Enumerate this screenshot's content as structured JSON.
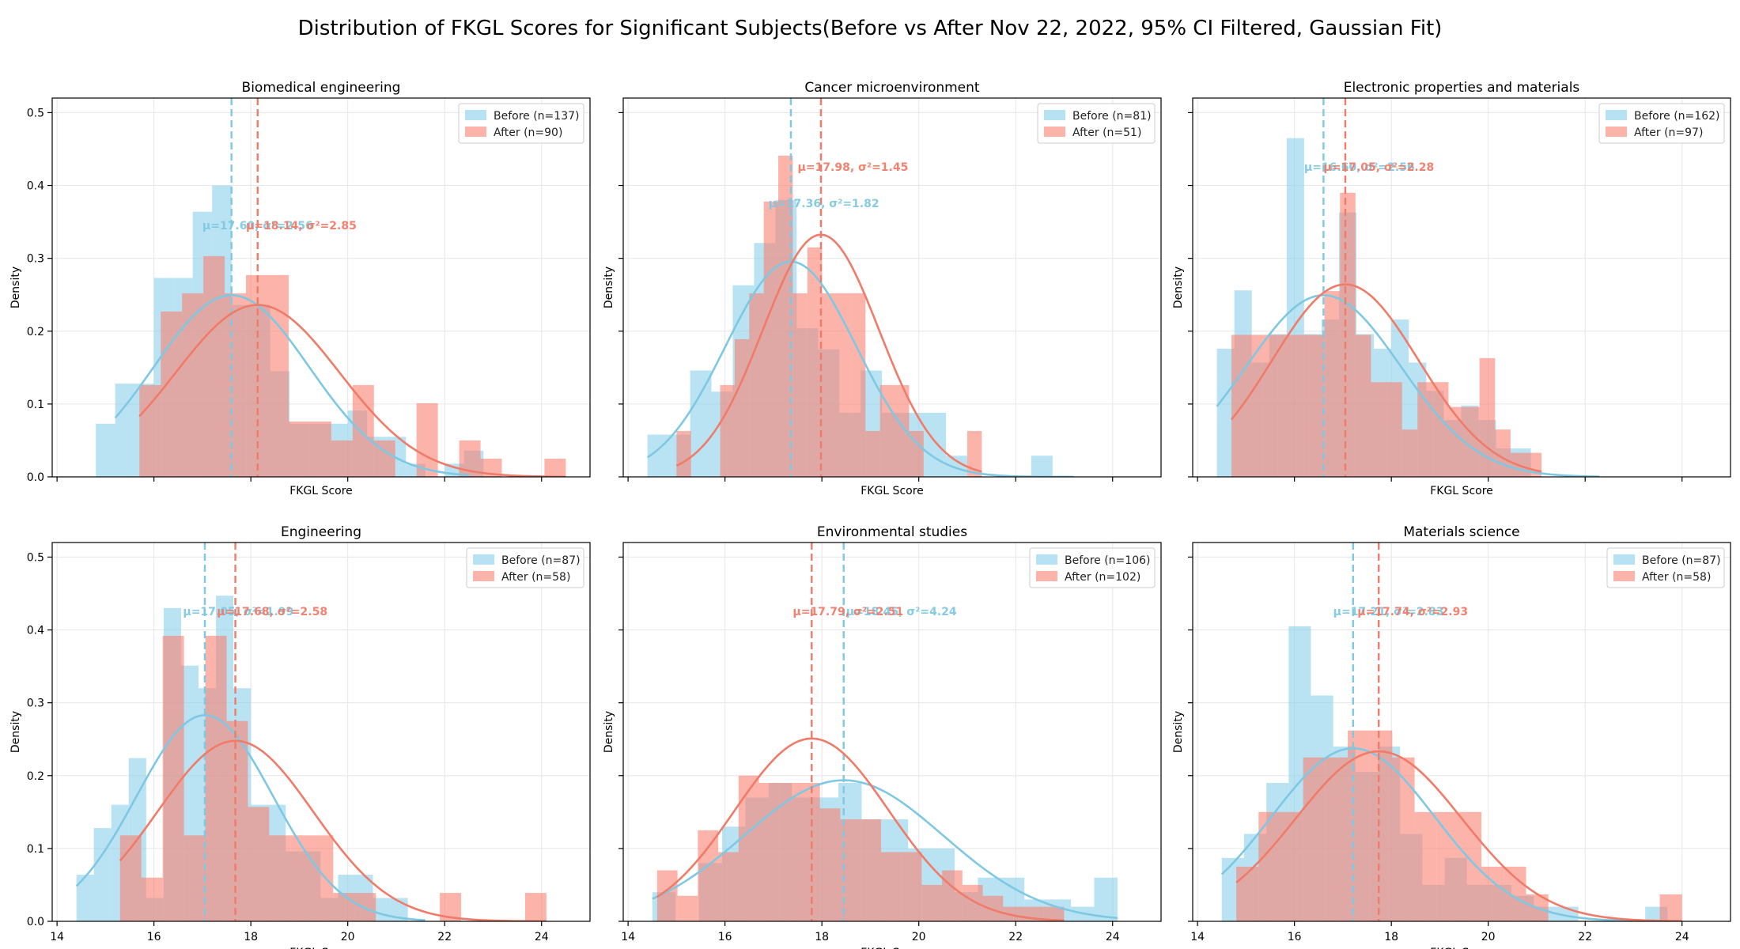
{
  "colors": {
    "before": "#87ceeb",
    "after": "#fa8072",
    "before_line": "#7ec8e3",
    "after_line": "#f07b68"
  },
  "figure": {
    "title": "Distribution of FKGL Scores for Significant Subjects(Before vs After Nov 22, 2022, 95% CI Filtered, Gaussian Fit)"
  },
  "chart_data": [
    {
      "type": "bar",
      "title": "Biomedical engineering",
      "xlabel": "FKGL Score",
      "ylabel": "Density",
      "xlim": [
        13.9,
        25.0
      ],
      "ylim": [
        0,
        0.52
      ],
      "xticks": [
        14,
        16,
        18,
        20,
        22,
        24
      ],
      "yticks": [
        0.0,
        0.1,
        0.2,
        0.3,
        0.4,
        0.5
      ],
      "show_xtick_labels": false,
      "show_ytick_labels": true,
      "grid": true,
      "legend_position": "top-right",
      "series": [
        {
          "name": "Before (n=137)",
          "key": "before",
          "bin_edges": [
            14.8,
            15.2,
            15.6,
            16.0,
            16.4,
            16.8,
            17.2,
            17.6,
            18.0,
            18.4,
            18.8,
            19.2,
            19.6,
            20.0,
            20.4,
            20.8,
            21.2,
            21.6,
            22.0,
            22.4,
            22.8
          ],
          "values": [
            0.073,
            0.128,
            0.128,
            0.273,
            0.273,
            0.364,
            0.4,
            0.236,
            0.236,
            0.145,
            0.073,
            0.073,
            0.073,
            0.091,
            0.055,
            0.055,
            0.018,
            0.0,
            0.018,
            0.036
          ],
          "fit": {
            "mu": 17.6,
            "sigma": 1.6,
            "x_range": [
              15.2,
              22.5
            ]
          },
          "mean_line": 17.6,
          "annotation": "μ=17.60, σ²=2.56",
          "annot_x": 17.0,
          "annot_y": 0.34
        },
        {
          "name": "After (n=90)",
          "key": "after",
          "bin_edges": [
            15.7,
            16.14,
            16.58,
            17.02,
            17.46,
            17.9,
            18.34,
            18.78,
            19.22,
            19.66,
            20.1,
            20.54,
            20.98,
            21.42,
            21.86,
            22.3,
            22.74,
            23.18,
            23.62,
            24.06,
            24.5
          ],
          "values": [
            0.126,
            0.227,
            0.252,
            0.303,
            0.252,
            0.277,
            0.277,
            0.076,
            0.076,
            0.05,
            0.126,
            0.05,
            0.0,
            0.101,
            0.0,
            0.05,
            0.025,
            0.0,
            0.0,
            0.025
          ],
          "fit": {
            "mu": 18.14,
            "sigma": 1.69,
            "x_range": [
              15.7,
              24.5
            ]
          },
          "mean_line": 18.14,
          "annotation": "μ=18.14, σ²=2.85",
          "annot_x": 17.9,
          "annot_y": 0.34
        }
      ]
    },
    {
      "type": "bar",
      "title": "Cancer microenvironment",
      "xlabel": "FKGL Score",
      "ylabel": "Density",
      "xlim": [
        13.9,
        25.0
      ],
      "ylim": [
        0,
        0.52
      ],
      "xticks": [
        14,
        16,
        18,
        20,
        22,
        24
      ],
      "yticks": [
        0.0,
        0.1,
        0.2,
        0.3,
        0.4,
        0.5
      ],
      "show_xtick_labels": false,
      "show_ytick_labels": false,
      "grid": true,
      "legend_position": "top-right",
      "series": [
        {
          "name": "Before (n=81)",
          "key": "before",
          "bin_edges": [
            14.4,
            14.84,
            15.28,
            15.72,
            16.16,
            16.6,
            17.04,
            17.48,
            17.92,
            18.36,
            18.8,
            19.24,
            19.68,
            20.12,
            20.56,
            21.0,
            21.44,
            21.88,
            22.32,
            22.76,
            23.2
          ],
          "values": [
            0.058,
            0.058,
            0.146,
            0.117,
            0.263,
            0.321,
            0.38,
            0.204,
            0.175,
            0.088,
            0.146,
            0.088,
            0.088,
            0.088,
            0.029,
            0.0,
            0.0,
            0.0,
            0.029,
            0.0
          ],
          "fit": {
            "mu": 17.36,
            "sigma": 1.35,
            "x_range": [
              14.4,
              23.2
            ]
          },
          "mean_line": 17.36,
          "annotation": "μ=17.36, σ²=1.82",
          "annot_x": 16.9,
          "annot_y": 0.37
        },
        {
          "name": "After (n=51)",
          "key": "after",
          "bin_edges": [
            15.0,
            15.3,
            15.6,
            15.9,
            16.2,
            16.5,
            16.8,
            17.1,
            17.4,
            17.7,
            18.0,
            18.3,
            18.6,
            18.9,
            19.2,
            19.5,
            19.8,
            20.1,
            20.4,
            20.7,
            21.0,
            21.3
          ],
          "values": [
            0.063,
            0.0,
            0.0,
            0.126,
            0.189,
            0.252,
            0.378,
            0.441,
            0.252,
            0.315,
            0.252,
            0.252,
            0.252,
            0.063,
            0.126,
            0.126,
            0.063,
            0.0,
            0.0,
            0.0,
            0.063
          ],
          "fit": {
            "mu": 17.98,
            "sigma": 1.2,
            "x_range": [
              15.0,
              21.3
            ]
          },
          "mean_line": 17.98,
          "annotation": "μ=17.98, σ²=1.45",
          "annot_x": 17.5,
          "annot_y": 0.42
        }
      ]
    },
    {
      "type": "bar",
      "title": "Electronic properties and materials",
      "xlabel": "FKGL Score",
      "ylabel": "Density",
      "xlim": [
        13.9,
        25.0
      ],
      "ylim": [
        0,
        0.52
      ],
      "xticks": [
        14,
        16,
        18,
        20,
        22,
        24
      ],
      "yticks": [
        0.0,
        0.1,
        0.2,
        0.3,
        0.4,
        0.5
      ],
      "show_xtick_labels": false,
      "show_ytick_labels": false,
      "grid": true,
      "legend_position": "top-right",
      "series": [
        {
          "name": "Before (n=162)",
          "key": "before",
          "bin_edges": [
            14.4,
            14.76,
            15.12,
            15.48,
            15.84,
            16.2,
            16.56,
            16.92,
            17.28,
            17.64,
            18.0,
            18.36,
            18.72,
            19.08,
            19.44,
            19.8,
            20.16,
            20.52,
            20.88,
            21.24,
            21.6,
            21.96,
            22.32
          ],
          "values": [
            0.176,
            0.256,
            0.157,
            0.196,
            0.465,
            0.196,
            0.216,
            0.363,
            0.196,
            0.176,
            0.216,
            0.157,
            0.118,
            0.078,
            0.098,
            0.078,
            0.039,
            0.039,
            0.0,
            0.0,
            0.0,
            0.0
          ],
          "fit": {
            "mu": 16.6,
            "sigma": 1.6,
            "x_range": [
              14.4,
              22.3
            ]
          },
          "mean_line": 16.6,
          "annotation": "μ=16.60, σ²=2.56",
          "annot_x": 16.2,
          "annot_y": 0.42
        },
        {
          "name": "After (n=97)",
          "key": "after",
          "bin_edges": [
            14.7,
            15.02,
            15.34,
            15.66,
            15.98,
            16.3,
            16.62,
            16.94,
            17.26,
            17.58,
            17.9,
            18.22,
            18.54,
            18.86,
            19.18,
            19.5,
            19.82,
            20.14,
            20.46,
            20.78,
            21.1
          ],
          "values": [
            0.195,
            0.195,
            0.195,
            0.195,
            0.195,
            0.195,
            0.255,
            0.39,
            0.195,
            0.13,
            0.13,
            0.065,
            0.13,
            0.13,
            0.096,
            0.096,
            0.163,
            0.065,
            0.033,
            0.033
          ],
          "fit": {
            "mu": 17.05,
            "sigma": 1.51,
            "x_range": [
              14.7,
              21.1
            ]
          },
          "mean_line": 17.05,
          "annotation": "μ=17.05, σ²=2.28",
          "annot_x": 16.6,
          "annot_y": 0.42
        }
      ]
    },
    {
      "type": "bar",
      "title": "Engineering",
      "xlabel": "FKGL Score",
      "ylabel": "Density",
      "xlim": [
        13.9,
        25.0
      ],
      "ylim": [
        0,
        0.52
      ],
      "xticks": [
        14,
        16,
        18,
        20,
        22,
        24
      ],
      "yticks": [
        0.0,
        0.1,
        0.2,
        0.3,
        0.4,
        0.5
      ],
      "show_xtick_labels": true,
      "show_ytick_labels": true,
      "grid": true,
      "legend_position": "top-right",
      "series": [
        {
          "name": "Before (n=87)",
          "key": "before",
          "bin_edges": [
            14.4,
            14.76,
            15.12,
            15.48,
            15.84,
            16.2,
            16.56,
            16.92,
            17.28,
            17.64,
            18.0,
            18.36,
            18.72,
            19.08,
            19.44,
            19.8,
            20.16,
            20.52,
            20.88,
            21.24,
            21.6
          ],
          "values": [
            0.064,
            0.128,
            0.16,
            0.224,
            0.032,
            0.43,
            0.351,
            0.32,
            0.447,
            0.32,
            0.16,
            0.16,
            0.096,
            0.096,
            0.032,
            0.064,
            0.064,
            0.032,
            0.032,
            0.0
          ],
          "fit": {
            "mu": 17.05,
            "sigma": 1.41,
            "x_range": [
              14.4,
              21.6
            ]
          },
          "mean_line": 17.05,
          "annotation": "μ=17.05, σ²=1.99",
          "annot_x": 16.6,
          "annot_y": 0.42
        },
        {
          "name": "After (n=58)",
          "key": "after",
          "bin_edges": [
            15.3,
            15.74,
            16.18,
            16.62,
            17.06,
            17.5,
            17.94,
            18.38,
            18.82,
            19.26,
            19.7,
            20.14,
            20.58,
            21.02,
            21.46,
            21.9,
            22.34,
            22.78,
            23.22,
            23.66,
            24.1
          ],
          "values": [
            0.118,
            0.06,
            0.392,
            0.118,
            0.392,
            0.275,
            0.157,
            0.118,
            0.118,
            0.118,
            0.039,
            0.039,
            0.0,
            0.0,
            0.0,
            0.039,
            0.0,
            0.0,
            0.0,
            0.039
          ],
          "fit": {
            "mu": 17.68,
            "sigma": 1.61,
            "x_range": [
              15.3,
              24.1
            ]
          },
          "mean_line": 17.68,
          "annotation": "μ=17.68, σ²=2.58",
          "annot_x": 17.3,
          "annot_y": 0.42
        }
      ]
    },
    {
      "type": "bar",
      "title": "Environmental studies",
      "xlabel": "FKGL Score",
      "ylabel": "Density",
      "xlim": [
        13.9,
        25.0
      ],
      "ylim": [
        0,
        0.52
      ],
      "xticks": [
        14,
        16,
        18,
        20,
        22,
        24
      ],
      "yticks": [
        0.0,
        0.1,
        0.2,
        0.3,
        0.4,
        0.5
      ],
      "show_xtick_labels": true,
      "show_ytick_labels": false,
      "grid": true,
      "legend_position": "top-right",
      "series": [
        {
          "name": "Before (n=106)",
          "key": "before",
          "bin_edges": [
            14.5,
            14.98,
            15.46,
            15.94,
            16.42,
            16.9,
            17.38,
            17.86,
            18.34,
            18.82,
            19.3,
            19.78,
            20.26,
            20.74,
            21.22,
            21.7,
            22.18,
            22.66,
            23.14,
            23.62,
            24.1
          ],
          "values": [
            0.04,
            0.0,
            0.08,
            0.13,
            0.17,
            0.19,
            0.17,
            0.17,
            0.19,
            0.14,
            0.14,
            0.1,
            0.1,
            0.04,
            0.06,
            0.06,
            0.03,
            0.03,
            0.02,
            0.06
          ],
          "fit": {
            "mu": 18.45,
            "sigma": 2.06,
            "x_range": [
              14.5,
              24.1
            ]
          },
          "mean_line": 18.45,
          "annotation": "μ=18.45, σ²=4.24",
          "annot_x": 18.5,
          "annot_y": 0.42
        },
        {
          "name": "After (n=102)",
          "key": "after",
          "bin_edges": [
            14.6,
            15.02,
            15.44,
            15.86,
            16.28,
            16.7,
            17.12,
            17.54,
            17.96,
            18.38,
            18.8,
            19.22,
            19.64,
            20.06,
            20.48,
            20.9,
            21.32,
            21.74,
            22.16,
            22.58,
            23.0
          ],
          "values": [
            0.07,
            0.035,
            0.125,
            0.095,
            0.2,
            0.19,
            0.19,
            0.19,
            0.155,
            0.14,
            0.14,
            0.095,
            0.095,
            0.05,
            0.07,
            0.05,
            0.035,
            0.02,
            0.02,
            0.02
          ],
          "fit": {
            "mu": 17.79,
            "sigma": 1.59,
            "x_range": [
              14.6,
              23.0
            ]
          },
          "mean_line": 17.79,
          "annotation": "μ=17.79, σ²=2.51",
          "annot_x": 17.4,
          "annot_y": 0.42
        }
      ]
    },
    {
      "type": "bar",
      "title": "Materials science",
      "xlabel": "FKGL Score",
      "ylabel": "Density",
      "xlim": [
        13.9,
        25.0
      ],
      "ylim": [
        0,
        0.52
      ],
      "xticks": [
        14,
        16,
        18,
        20,
        22,
        24
      ],
      "yticks": [
        0.0,
        0.1,
        0.2,
        0.3,
        0.4,
        0.5
      ],
      "show_xtick_labels": true,
      "show_ytick_labels": false,
      "grid": true,
      "legend_position": "top-right",
      "series": [
        {
          "name": "Before (n=87)",
          "key": "before",
          "bin_edges": [
            14.5,
            14.96,
            15.42,
            15.88,
            16.34,
            16.8,
            17.26,
            17.72,
            18.18,
            18.64,
            19.1,
            19.56,
            20.02,
            20.48,
            20.94,
            21.4,
            21.86,
            22.32,
            22.78,
            23.24,
            23.7
          ],
          "values": [
            0.087,
            0.12,
            0.19,
            0.405,
            0.31,
            0.24,
            0.205,
            0.24,
            0.12,
            0.05,
            0.087,
            0.05,
            0.05,
            0.035,
            0.02,
            0.02,
            0.0,
            0.0,
            0.0,
            0.02
          ],
          "fit": {
            "mu": 17.21,
            "sigma": 1.68,
            "x_range": [
              14.5,
              23.7
            ]
          },
          "mean_line": 17.21,
          "annotation": "μ=17.21, σ²=2.83",
          "annot_x": 16.8,
          "annot_y": 0.42
        },
        {
          "name": "After (n=58)",
          "key": "after",
          "bin_edges": [
            14.8,
            15.26,
            15.72,
            16.18,
            16.64,
            17.1,
            17.56,
            18.02,
            18.48,
            18.94,
            19.4,
            19.86,
            20.32,
            20.78,
            21.24,
            21.7,
            22.16,
            22.62,
            23.08,
            23.54,
            24.0
          ],
          "values": [
            0.075,
            0.15,
            0.15,
            0.225,
            0.225,
            0.262,
            0.262,
            0.225,
            0.15,
            0.15,
            0.15,
            0.075,
            0.075,
            0.037,
            0.0,
            0.0,
            0.0,
            0.0,
            0.0,
            0.037
          ],
          "fit": {
            "mu": 17.74,
            "sigma": 1.71,
            "x_range": [
              14.8,
              24.0
            ]
          },
          "mean_line": 17.74,
          "annotation": "μ=17.74, σ²=2.93",
          "annot_x": 17.3,
          "annot_y": 0.42
        }
      ]
    }
  ]
}
